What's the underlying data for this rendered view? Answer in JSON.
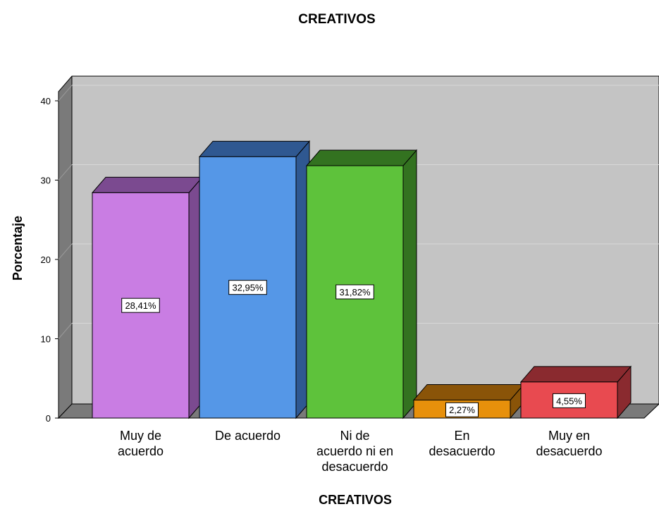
{
  "chart_data": {
    "type": "bar",
    "title": "CREATIVOS",
    "xlabel": "CREATIVOS",
    "ylabel": "Porcentaje",
    "ylim": [
      0,
      40
    ],
    "yticks": [
      "0",
      "10",
      "20",
      "30",
      "40"
    ],
    "grid": true,
    "three_d": true,
    "categories": [
      [
        "Muy de",
        "acuerdo"
      ],
      [
        "De acuerdo"
      ],
      [
        "Ni de",
        "acuerdo ni en",
        "desacuerdo"
      ],
      [
        "En",
        "desacuerdo"
      ],
      [
        "Muy en",
        "desacuerdo"
      ]
    ],
    "values": [
      28.41,
      32.95,
      31.82,
      2.27,
      4.55
    ],
    "value_labels": [
      "28,41%",
      "32,95%",
      "31,82%",
      "2,27%",
      "4,55%"
    ],
    "colors": [
      "#c97de3",
      "#5597e7",
      "#5ec23b",
      "#e7900b",
      "#e84a50"
    ],
    "side_colors": [
      "#7b4a90",
      "#2f5891",
      "#337220",
      "#8a5408",
      "#8a2a2f"
    ]
  }
}
